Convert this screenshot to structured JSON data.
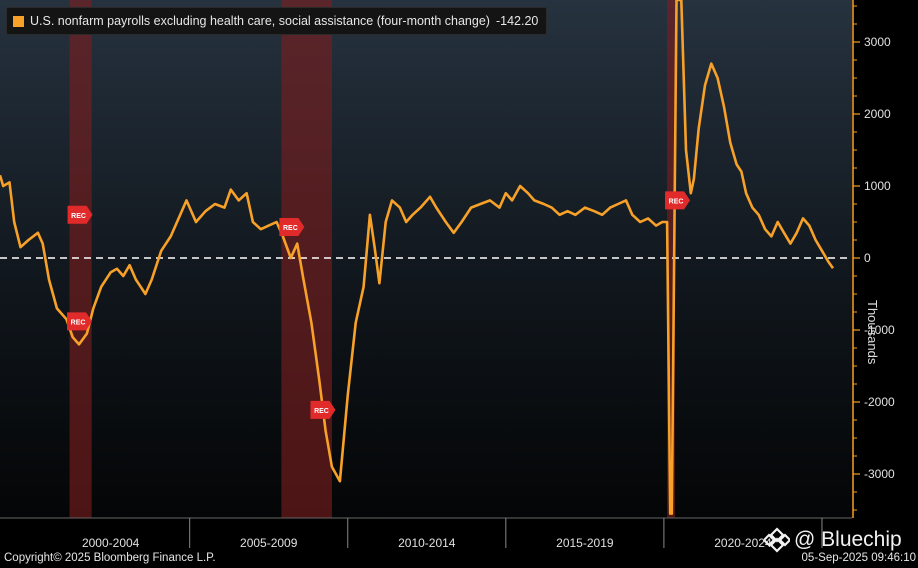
{
  "legend": {
    "label": "U.S. nonfarm payrolls excluding health care, social assistance (four-month change)",
    "value": "-142.20",
    "color": "#f7a128"
  },
  "footer": {
    "copyright": "Copyright© 2025 Bloomberg Finance L.P.",
    "timestamp": "05-Sep-2025 09:46:10"
  },
  "watermark": {
    "text": "@ Bluechip",
    "icon": "bluechip-diamond-icon"
  },
  "recession_tag": "REC",
  "chart_data": {
    "type": "line",
    "title": "",
    "xlabel": "",
    "ylabel": "Thousands",
    "ylim": [
      -3550,
      3600
    ],
    "y_ticks": [
      3000,
      2000,
      1000,
      0,
      -1000,
      -2000,
      -3000
    ],
    "x_range": [
      1999.0,
      2025.95
    ],
    "x_period_labels": [
      "2000-2004",
      "2005-2009",
      "2010-2014",
      "2015-2019",
      "2020-2024"
    ],
    "reference_line": 0,
    "grid": false,
    "legend_position": "top-left",
    "line_color": "#f7a128",
    "recessions": [
      {
        "start": 2001.2,
        "end": 2001.9,
        "tag_y": 600
      },
      {
        "start": 2007.9,
        "end": 2009.5,
        "tag_y": 430
      },
      {
        "start": 2020.1,
        "end": 2020.35,
        "tag_y": 800
      }
    ],
    "recession_extra_tags": [
      {
        "x": 2001.5,
        "y": -880
      },
      {
        "x": 2009.2,
        "y": -2110
      }
    ],
    "series": [
      {
        "values": [
          [
            1999.0,
            1150
          ],
          [
            1999.1,
            1000
          ],
          [
            1999.3,
            1050
          ],
          [
            1999.45,
            500
          ],
          [
            1999.65,
            150
          ],
          [
            1999.9,
            250
          ],
          [
            2000.2,
            350
          ],
          [
            2000.35,
            200
          ],
          [
            2000.55,
            -300
          ],
          [
            2000.8,
            -700
          ],
          [
            2001.1,
            -850
          ],
          [
            2001.3,
            -1100
          ],
          [
            2001.5,
            -1200
          ],
          [
            2001.75,
            -1050
          ],
          [
            2001.95,
            -700
          ],
          [
            2002.2,
            -400
          ],
          [
            2002.5,
            -200
          ],
          [
            2002.7,
            -150
          ],
          [
            2002.9,
            -250
          ],
          [
            2003.1,
            -100
          ],
          [
            2003.3,
            -300
          ],
          [
            2003.45,
            -400
          ],
          [
            2003.6,
            -500
          ],
          [
            2003.8,
            -300
          ],
          [
            2004.1,
            100
          ],
          [
            2004.4,
            300
          ],
          [
            2004.7,
            600
          ],
          [
            2004.9,
            800
          ],
          [
            2005.2,
            500
          ],
          [
            2005.5,
            650
          ],
          [
            2005.8,
            750
          ],
          [
            2006.1,
            700
          ],
          [
            2006.3,
            950
          ],
          [
            2006.55,
            800
          ],
          [
            2006.8,
            900
          ],
          [
            2007.0,
            500
          ],
          [
            2007.25,
            400
          ],
          [
            2007.5,
            450
          ],
          [
            2007.75,
            500
          ],
          [
            2007.95,
            300
          ],
          [
            2008.2,
            0
          ],
          [
            2008.4,
            200
          ],
          [
            2008.6,
            -300
          ],
          [
            2008.85,
            -900
          ],
          [
            2009.1,
            -1700
          ],
          [
            2009.3,
            -2400
          ],
          [
            2009.5,
            -2900
          ],
          [
            2009.75,
            -3100
          ],
          [
            2010.0,
            -1900
          ],
          [
            2010.25,
            -900
          ],
          [
            2010.5,
            -400
          ],
          [
            2010.7,
            600
          ],
          [
            2010.85,
            150
          ],
          [
            2011.0,
            -350
          ],
          [
            2011.2,
            500
          ],
          [
            2011.4,
            800
          ],
          [
            2011.65,
            700
          ],
          [
            2011.85,
            500
          ],
          [
            2012.05,
            600
          ],
          [
            2012.3,
            700
          ],
          [
            2012.6,
            850
          ],
          [
            2012.8,
            700
          ],
          [
            2013.1,
            500
          ],
          [
            2013.35,
            350
          ],
          [
            2013.6,
            500
          ],
          [
            2013.9,
            700
          ],
          [
            2014.2,
            750
          ],
          [
            2014.5,
            800
          ],
          [
            2014.8,
            700
          ],
          [
            2015.0,
            900
          ],
          [
            2015.2,
            800
          ],
          [
            2015.45,
            1000
          ],
          [
            2015.7,
            900
          ],
          [
            2015.9,
            800
          ],
          [
            2016.2,
            750
          ],
          [
            2016.45,
            700
          ],
          [
            2016.7,
            600
          ],
          [
            2016.95,
            650
          ],
          [
            2017.2,
            600
          ],
          [
            2017.5,
            700
          ],
          [
            2017.8,
            650
          ],
          [
            2018.05,
            600
          ],
          [
            2018.3,
            700
          ],
          [
            2018.55,
            750
          ],
          [
            2018.8,
            800
          ],
          [
            2019.0,
            600
          ],
          [
            2019.25,
            500
          ],
          [
            2019.5,
            550
          ],
          [
            2019.75,
            450
          ],
          [
            2019.95,
            500
          ],
          [
            2020.1,
            500
          ],
          [
            2020.2,
            -3550
          ],
          [
            2020.25,
            -3550
          ],
          [
            2020.4,
            3600
          ],
          [
            2020.55,
            3600
          ],
          [
            2020.7,
            1500
          ],
          [
            2020.85,
            900
          ],
          [
            2020.95,
            1100
          ],
          [
            2021.1,
            1800
          ],
          [
            2021.3,
            2400
          ],
          [
            2021.5,
            2700
          ],
          [
            2021.7,
            2500
          ],
          [
            2021.9,
            2100
          ],
          [
            2022.1,
            1600
          ],
          [
            2022.3,
            1300
          ],
          [
            2022.45,
            1200
          ],
          [
            2022.6,
            900
          ],
          [
            2022.8,
            700
          ],
          [
            2023.0,
            600
          ],
          [
            2023.2,
            400
          ],
          [
            2023.4,
            300
          ],
          [
            2023.6,
            500
          ],
          [
            2023.8,
            350
          ],
          [
            2024.0,
            200
          ],
          [
            2024.2,
            350
          ],
          [
            2024.4,
            550
          ],
          [
            2024.6,
            450
          ],
          [
            2024.8,
            250
          ],
          [
            2025.0,
            100
          ],
          [
            2025.2,
            -50
          ],
          [
            2025.35,
            -142.2
          ]
        ]
      }
    ]
  }
}
